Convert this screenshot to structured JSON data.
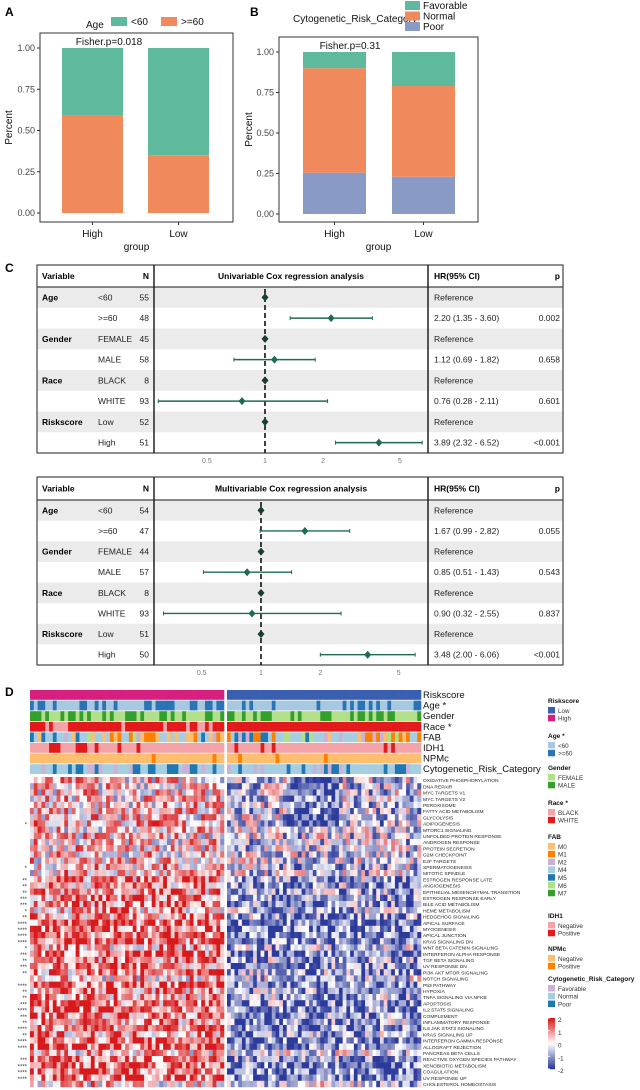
{
  "panel_labels": {
    "a": "A",
    "b": "B",
    "c": "C",
    "d": "D"
  },
  "chart_data": [
    {
      "panel": "A",
      "type": "bar",
      "stacked": true,
      "categories": [
        "High",
        "Low"
      ],
      "xlabel": "group",
      "ylabel": "Percent",
      "ylim": [
        0,
        1
      ],
      "yticks": [
        "0.00",
        "0.25",
        "0.50",
        "0.75",
        "1.00"
      ],
      "annotation": "Fisher.p=0.018",
      "legend_title": "Age",
      "legend_placement": "top",
      "series": [
        {
          "name": ">=60",
          "color": "#f08a5d",
          "values": [
            0.59,
            0.35
          ]
        },
        {
          "name": "<60",
          "color": "#5fb99c",
          "values": [
            0.41,
            0.65
          ]
        }
      ]
    },
    {
      "panel": "B",
      "type": "bar",
      "stacked": true,
      "categories": [
        "High",
        "Low"
      ],
      "xlabel": "group",
      "ylabel": "Percent",
      "ylim": [
        0,
        1
      ],
      "yticks": [
        "0.00",
        "0.25",
        "0.50",
        "0.75",
        "1.00"
      ],
      "annotation": "Fisher.p=0.31",
      "legend_title": "Cytogenetic_Risk_Category",
      "legend_placement": "top",
      "series": [
        {
          "name": "Poor",
          "color": "#8a9ac6",
          "values": [
            0.255,
            0.23
          ]
        },
        {
          "name": "Normal",
          "color": "#f08a5d",
          "values": [
            0.645,
            0.56
          ]
        },
        {
          "name": "Favorable",
          "color": "#5fb99c",
          "values": [
            0.1,
            0.21
          ]
        }
      ],
      "legend_order": [
        "Favorable",
        "Normal",
        "Poor"
      ]
    },
    {
      "panel": "C1",
      "type": "forest",
      "title": "Univariable Cox regression analysis",
      "headers": {
        "variable": "Variable",
        "n": "N",
        "hr": "HR(95% CI)",
        "p": "p"
      },
      "xscale": "log",
      "xticks": [
        "0.5",
        "1",
        "2",
        "5"
      ],
      "xlim": [
        0.25,
        7
      ],
      "point_color": "#1e6b55",
      "rows": [
        {
          "variable": "Age",
          "level": "<60",
          "n": "55",
          "hr": 1,
          "lo": null,
          "hi": null,
          "hr_text": "Reference",
          "p": ""
        },
        {
          "variable": "",
          "level": ">=60",
          "n": "48",
          "hr": 2.2,
          "lo": 1.35,
          "hi": 3.6,
          "hr_text": "2.20 (1.35 - 3.60)",
          "p": "0.002"
        },
        {
          "variable": "Gender",
          "level": "FEMALE",
          "n": "45",
          "hr": 1,
          "lo": null,
          "hi": null,
          "hr_text": "Reference",
          "p": ""
        },
        {
          "variable": "",
          "level": "MALE",
          "n": "58",
          "hr": 1.12,
          "lo": 0.69,
          "hi": 1.82,
          "hr_text": "1.12 (0.69 - 1.82)",
          "p": "0.658"
        },
        {
          "variable": "Race",
          "level": "BLACK",
          "n": "8",
          "hr": 1,
          "lo": null,
          "hi": null,
          "hr_text": "Reference",
          "p": ""
        },
        {
          "variable": "",
          "level": "WHITE",
          "n": "93",
          "hr": 0.76,
          "lo": 0.28,
          "hi": 2.11,
          "hr_text": "0.76 (0.28 - 2.11)",
          "p": "0.601"
        },
        {
          "variable": "Riskscore",
          "level": "Low",
          "n": "52",
          "hr": 1,
          "lo": null,
          "hi": null,
          "hr_text": "Reference",
          "p": ""
        },
        {
          "variable": "",
          "level": "High",
          "n": "51",
          "hr": 3.89,
          "lo": 2.32,
          "hi": 6.52,
          "hr_text": "3.89 (2.32 - 6.52)",
          "p": "<0.001"
        }
      ]
    },
    {
      "panel": "C2",
      "type": "forest",
      "title": "Multivariable Cox regression analysis",
      "headers": {
        "variable": "Variable",
        "n": "N",
        "hr": "HR(95% CI)",
        "p": "p"
      },
      "xscale": "log",
      "xticks": [
        "0.5",
        "1",
        "2",
        "5"
      ],
      "xlim": [
        0.28,
        6.5
      ],
      "point_color": "#1e6b55",
      "rows": [
        {
          "variable": "Age",
          "level": "<60",
          "n": "54",
          "hr": 1,
          "lo": null,
          "hi": null,
          "hr_text": "Reference",
          "p": ""
        },
        {
          "variable": "",
          "level": ">=60",
          "n": "47",
          "hr": 1.67,
          "lo": 0.99,
          "hi": 2.82,
          "hr_text": "1.67 (0.99 - 2.82)",
          "p": "0.055"
        },
        {
          "variable": "Gender",
          "level": "FEMALE",
          "n": "44",
          "hr": 1,
          "lo": null,
          "hi": null,
          "hr_text": "Reference",
          "p": ""
        },
        {
          "variable": "",
          "level": "MALE",
          "n": "57",
          "hr": 0.85,
          "lo": 0.51,
          "hi": 1.43,
          "hr_text": "0.85 (0.51 - 1.43)",
          "p": "0.543"
        },
        {
          "variable": "Race",
          "level": "BLACK",
          "n": "8",
          "hr": 1,
          "lo": null,
          "hi": null,
          "hr_text": "Reference",
          "p": ""
        },
        {
          "variable": "",
          "level": "WHITE",
          "n": "93",
          "hr": 0.9,
          "lo": 0.32,
          "hi": 2.55,
          "hr_text": "0.90 (0.32 - 2.55)",
          "p": "0.837"
        },
        {
          "variable": "Riskscore",
          "level": "Low",
          "n": "51",
          "hr": 1,
          "lo": null,
          "hi": null,
          "hr_text": "Reference",
          "p": ""
        },
        {
          "variable": "",
          "level": "High",
          "n": "50",
          "hr": 3.48,
          "lo": 2.0,
          "hi": 6.06,
          "hr_text": "3.48 (2.00 - 6.06)",
          "p": "<0.001"
        }
      ]
    },
    {
      "panel": "D",
      "type": "heatmap",
      "groups": [
        {
          "name": "High",
          "count": 51
        },
        {
          "name": "Low",
          "count": 52
        }
      ],
      "annotation_tracks": [
        "Riskscore",
        "Age *",
        "Gender",
        "Race *",
        "FAB",
        "IDH1",
        "NPMc",
        "Cytogenetic_Risk_Category"
      ],
      "rows": [
        "OXIDATIVE PHOSPHORYLATION",
        "DNA REPAIR",
        "MYC TARGETS V1",
        "MYC TARGETS V2",
        "PEROXISOME",
        "FATTY ACID METABOLISM",
        "GLYCOLYSIS",
        "ADIPOGENESIS",
        "MTORC1 SIGNALING",
        "UNFOLDED PROTEIN RESPONSE",
        "ANDROGEN RESPONSE",
        "PROTEIN SECRETION",
        "G2M CHECKPOINT",
        "E2F TARGETS",
        "SPERMATOGENESIS",
        "MITOTIC SPINDLE",
        "ESTROGEN RESPONSE LATE",
        "ANGIOGENESIS",
        "EPITHELIAL MESENCHYMAL TRANSITION",
        "ESTROGEN RESPONSE EARLY",
        "BILE ACID METABOLISM",
        "HEME METABOLISM",
        "HEDGEHOG SIGNALING",
        "APICAL SURFACE",
        "MYOGENESIS",
        "APICAL JUNCTION",
        "KRAS SIGNALING DN",
        "WNT BETA CATENIN SIGNALING",
        "INTERFERON ALPHA RESPONSE",
        "TGF BETA SIGNALING",
        "UV RESPONSE DN",
        "PI3K AKT MTOR SIGNALING",
        "NOTCH SIGNALING",
        "P53 PATHWAY",
        "HYPOXIA",
        "TNFA SIGNALING VIA NFKB",
        "APOPTOSIS",
        "IL2 STAT5 SIGNALING",
        "COMPLEMENT",
        "INFLAMMATORY RESPONSE",
        "IL6 JAK STAT3 SIGNALING",
        "KRAS SIGNALING UP",
        "INTERFERON GAMMA RESPONSE",
        "ALLOGRAFT REJECTION",
        "PANCREAS BETA CELLS",
        "REACTIVE OXYGEN SPECIES PATHWAY",
        "XENOBIOTIC METABOLISM",
        "COAGULATION",
        "UV RESPONSE UP",
        "CHOLESTEROL HOMEOSTASIS"
      ],
      "row_significance": [
        "",
        "",
        "",
        "",
        "",
        "",
        "",
        "*",
        "",
        "",
        "",
        "",
        "",
        "",
        "*",
        "",
        "**",
        "**",
        "**",
        "***",
        "***",
        "*",
        "**",
        "****",
        "****",
        "****",
        "****",
        "*",
        "***",
        "**",
        "***",
        "**",
        "",
        "****",
        "**",
        "**",
        "***",
        "****",
        "***",
        "**",
        "****",
        "**",
        "****",
        "****",
        "",
        "***",
        "****",
        "****",
        "****",
        ""
      ],
      "color_scale": {
        "min": -2,
        "max": 2,
        "low": "#2b3a9b",
        "mid": "#ffffff",
        "high": "#d7191c",
        "ticks": [
          "2",
          "1",
          "0",
          "-1",
          "-2"
        ]
      },
      "legends": [
        {
          "title": "Riskscore",
          "items": [
            {
              "label": "Low",
              "color": "#3a5fb0"
            },
            {
              "label": "High",
              "color": "#d61f7f"
            }
          ]
        },
        {
          "title": "Age *",
          "items": [
            {
              "label": "<60",
              "color": "#a6c8e0"
            },
            {
              "label": ">=60",
              "color": "#2a73b5"
            }
          ]
        },
        {
          "title": "Gender",
          "items": [
            {
              "label": "FEMALE",
              "color": "#b2df8a"
            },
            {
              "label": "MALE",
              "color": "#33a02c"
            }
          ]
        },
        {
          "title": "Race *",
          "items": [
            {
              "label": "BLACK",
              "color": "#f4a3a8"
            },
            {
              "label": "WHITE",
              "color": "#e31a1c"
            }
          ]
        },
        {
          "title": "FAB",
          "items": [
            {
              "label": "M0",
              "color": "#fdbf6f"
            },
            {
              "label": "M1",
              "color": "#ff7f00"
            },
            {
              "label": "M2",
              "color": "#cab2d6"
            },
            {
              "label": "M4",
              "color": "#a6cee3"
            },
            {
              "label": "M5",
              "color": "#1f78b4"
            },
            {
              "label": "M6",
              "color": "#b2df8a"
            },
            {
              "label": "M7",
              "color": "#33a02c"
            }
          ]
        },
        {
          "title": "IDH1",
          "items": [
            {
              "label": "Negative",
              "color": "#f4a3a8"
            },
            {
              "label": "Positive",
              "color": "#e31a1c"
            }
          ]
        },
        {
          "title": "NPMc",
          "items": [
            {
              "label": "Negative",
              "color": "#fdbf6f"
            },
            {
              "label": "Positive",
              "color": "#ff7f00"
            }
          ]
        },
        {
          "title": "Cytogenetic_Risk_Category",
          "items": [
            {
              "label": "Favorable",
              "color": "#cab2d6"
            },
            {
              "label": "Normal",
              "color": "#a6cee3"
            },
            {
              "label": "Poor",
              "color": "#1f78b4"
            }
          ]
        }
      ]
    }
  ]
}
